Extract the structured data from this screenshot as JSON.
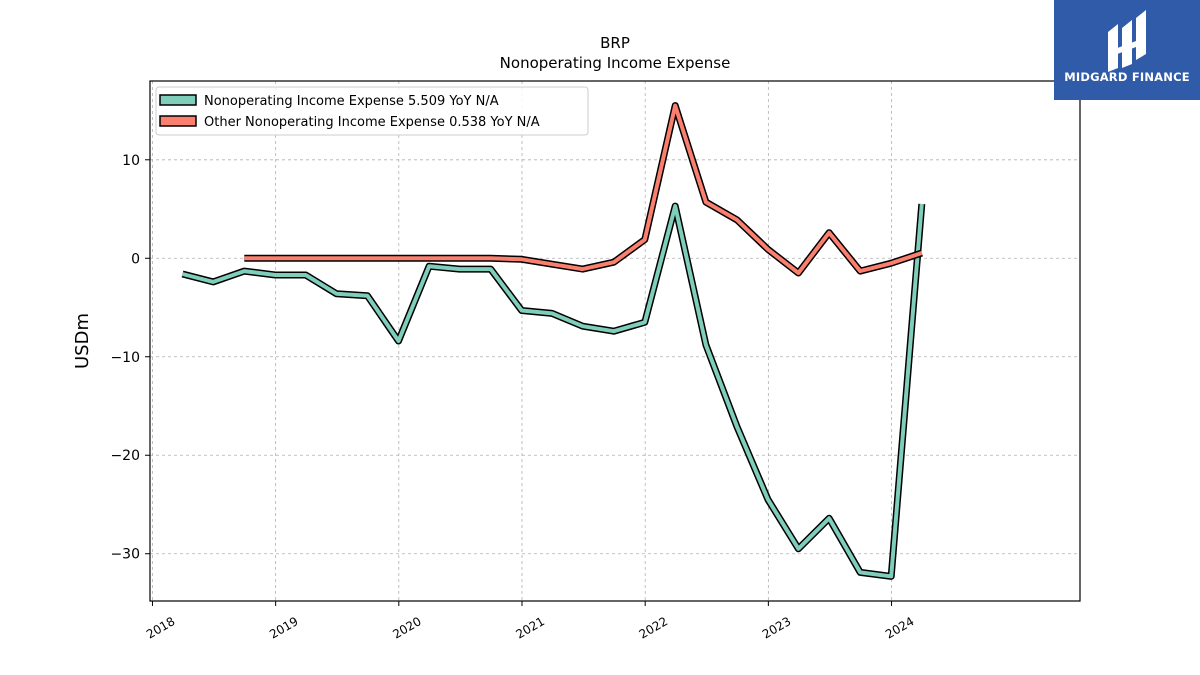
{
  "chart_data": {
    "type": "line",
    "title": "BRP",
    "subtitle": "Nonoperating Income Expense",
    "ylabel": "USDm",
    "xlabel": "",
    "ylim": [
      -34.8,
      18
    ],
    "xlim": [
      2017.98,
      2025.53
    ],
    "x_ticks": [
      2018,
      2019,
      2020,
      2021,
      2022,
      2023,
      2024
    ],
    "x_tick_labels": [
      "2018",
      "2019",
      "2020",
      "2021",
      "2022",
      "2023",
      "2024"
    ],
    "y_ticks": [
      10,
      0,
      -10,
      -20,
      -30
    ],
    "y_tick_labels": [
      "10",
      "0",
      "−10",
      "−20",
      "−30"
    ],
    "grid": true,
    "legend_position": "top-left",
    "series": [
      {
        "name": "Nonoperating Income Expense  5.509 YoY N/A",
        "color": "#7fcdbb",
        "x": [
          "2018-03-31",
          "2018-06-30",
          "2018-09-30",
          "2018-12-31",
          "2019-03-31",
          "2019-06-30",
          "2019-09-30",
          "2019-12-31",
          "2020-03-31",
          "2020-06-30",
          "2020-09-30",
          "2020-12-31",
          "2021-03-31",
          "2021-06-30",
          "2021-09-30",
          "2021-12-31",
          "2022-03-31",
          "2022-06-30",
          "2022-09-30",
          "2022-12-31",
          "2023-03-31",
          "2023-06-30",
          "2023-09-30",
          "2023-12-31",
          "2024-03-31"
        ],
        "values": [
          -1.6,
          -2.4,
          -1.3,
          -1.7,
          -1.7,
          -3.6,
          -3.8,
          -8.4,
          -0.8,
          -1.1,
          -1.1,
          -5.3,
          -5.6,
          -6.9,
          -7.4,
          -6.5,
          5.3,
          -8.8,
          -17.1,
          -24.5,
          -29.5,
          -26.4,
          -31.9,
          -32.3,
          5.509
        ]
      },
      {
        "name": "Other Nonoperating Income Expense  0.538 YoY N/A",
        "color": "#fa7f6f",
        "x": [
          "2018-09-30",
          "2018-12-31",
          "2019-03-31",
          "2019-06-30",
          "2019-09-30",
          "2019-12-31",
          "2020-03-31",
          "2020-06-30",
          "2020-09-30",
          "2020-12-31",
          "2021-03-31",
          "2021-06-30",
          "2021-09-30",
          "2021-12-31",
          "2022-03-31",
          "2022-06-30",
          "2022-09-30",
          "2022-12-31",
          "2023-03-31",
          "2023-06-30",
          "2023-09-30",
          "2023-12-31",
          "2024-03-31"
        ],
        "values": [
          0.0,
          0.0,
          0.0,
          0.0,
          0.0,
          0.0,
          0.0,
          0.0,
          0.0,
          -0.1,
          -0.6,
          -1.1,
          -0.4,
          1.9,
          15.5,
          5.7,
          3.9,
          0.9,
          -1.5,
          2.6,
          -1.3,
          -0.5,
          0.538
        ]
      }
    ]
  },
  "logo": {
    "text": "MIDGARD FINANCE"
  }
}
